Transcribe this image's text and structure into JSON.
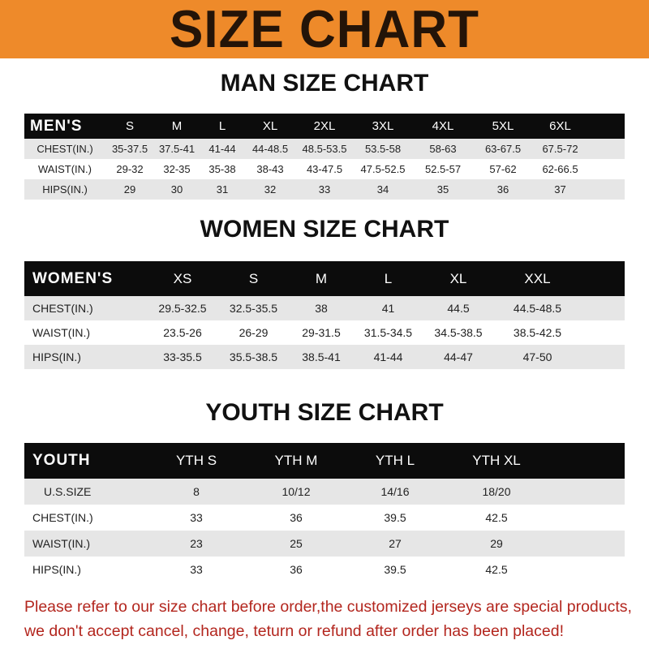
{
  "banner": {
    "title": "SIZE CHART",
    "color": "#ee8a2a"
  },
  "men": {
    "title": "MAN SIZE CHART",
    "header": [
      "MEN'S",
      "S",
      "M",
      "L",
      "XL",
      "2XL",
      "3XL",
      "4XL",
      "5XL",
      "6XL"
    ],
    "rows": [
      [
        "CHEST(IN.)",
        "35-37.5",
        "37.5-41",
        "41-44",
        "44-48.5",
        "48.5-53.5",
        "53.5-58",
        "58-63",
        "63-67.5",
        "67.5-72"
      ],
      [
        "WAIST(IN.)",
        "29-32",
        "32-35",
        "35-38",
        "38-43",
        "43-47.5",
        "47.5-52.5",
        "52.5-57",
        "57-62",
        "62-66.5"
      ],
      [
        "HIPS(IN.)",
        "29",
        "30",
        "31",
        "32",
        "33",
        "34",
        "35",
        "36",
        "37"
      ]
    ]
  },
  "women": {
    "title": "WOMEN SIZE CHART",
    "header": [
      "WOMEN'S",
      "XS",
      "S",
      "M",
      "L",
      "XL",
      "XXL"
    ],
    "rows": [
      [
        "CHEST(IN.)",
        "29.5-32.5",
        "32.5-35.5",
        "38",
        "41",
        "44.5",
        "44.5-48.5"
      ],
      [
        "WAIST(IN.)",
        "23.5-26",
        "26-29",
        "29-31.5",
        "31.5-34.5",
        "34.5-38.5",
        "38.5-42.5"
      ],
      [
        "HIPS(IN.)",
        "33-35.5",
        "35.5-38.5",
        "38.5-41",
        "41-44",
        "44-47",
        "47-50"
      ]
    ]
  },
  "youth": {
    "title": "YOUTH SIZE CHART",
    "header": [
      "YOUTH",
      "YTH S",
      "YTH M",
      "YTH L",
      "YTH XL"
    ],
    "rows": [
      [
        "U.S.SIZE",
        "8",
        "10/12",
        "14/16",
        "18/20"
      ],
      [
        "CHEST(IN.)",
        "33",
        "36",
        "39.5",
        "42.5"
      ],
      [
        "WAIST(IN.)",
        "23",
        "25",
        "27",
        "29"
      ],
      [
        "HIPS(IN.)",
        "33",
        "36",
        "39.5",
        "42.5"
      ]
    ]
  },
  "note": {
    "line1": "Please refer to our size chart before order,the customized jerseys are special products,",
    "line2": "we don't accept cancel, change, teturn or refund after order has been placed!",
    "color": "#b3261e"
  }
}
